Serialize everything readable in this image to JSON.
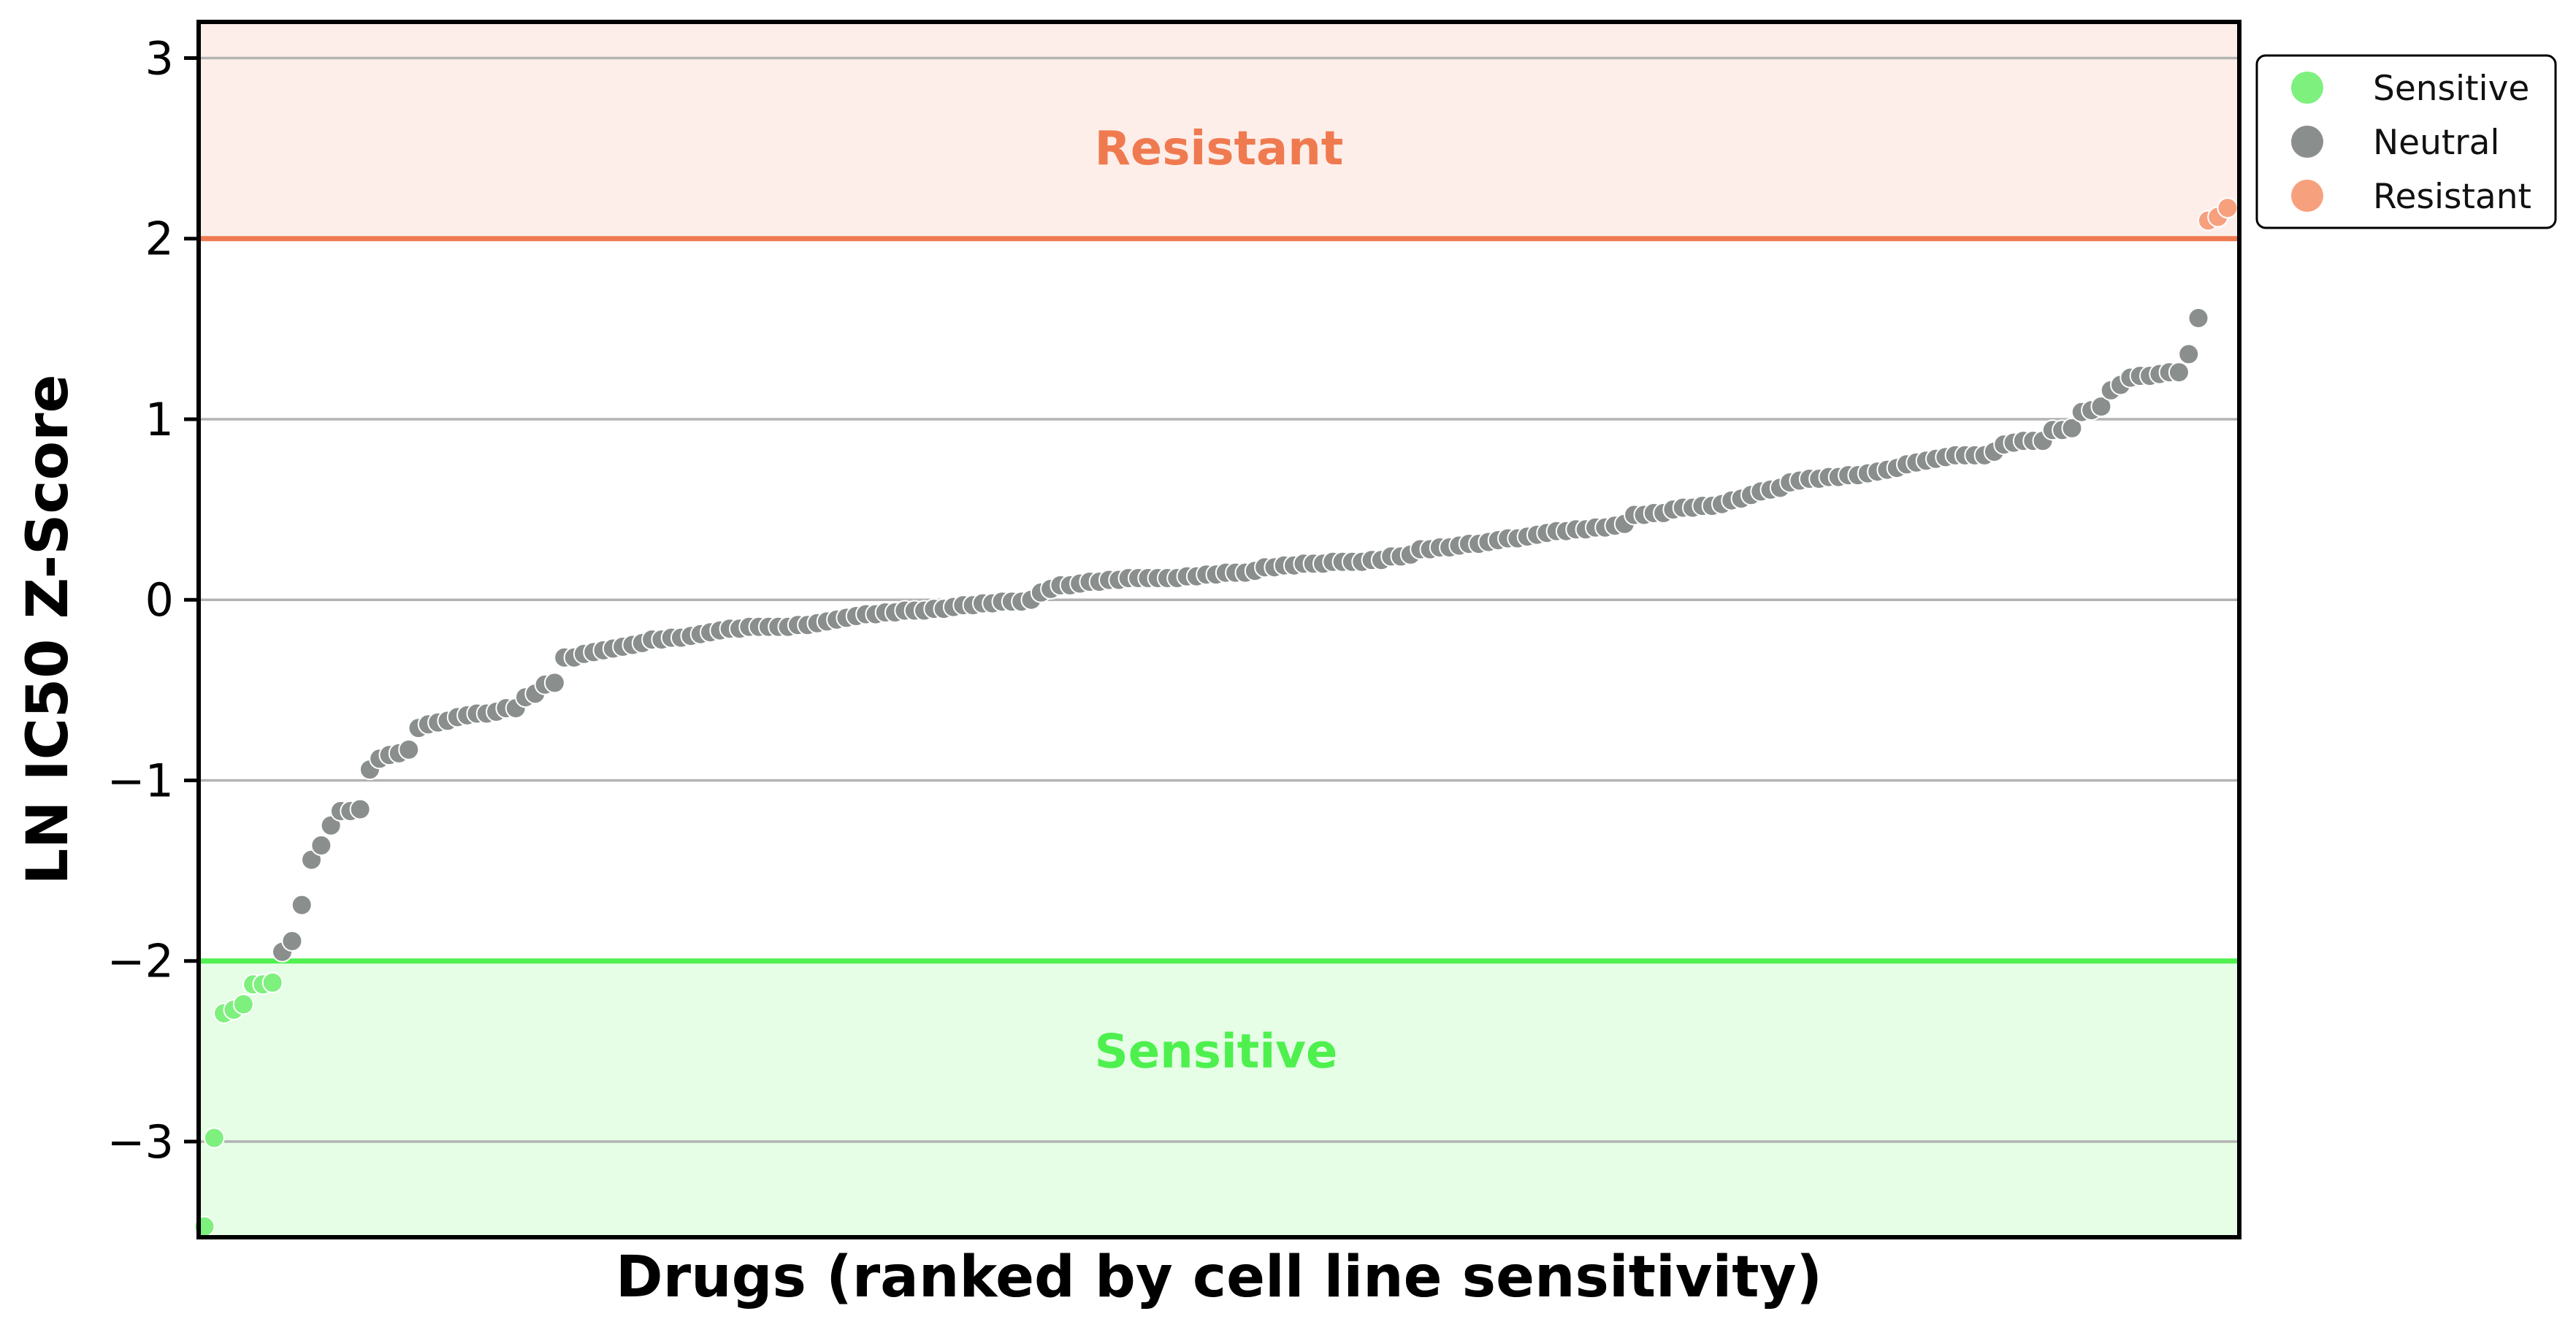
{
  "chart_data": {
    "type": "scatter",
    "title": "",
    "xlabel": "Drugs (ranked by cell line sensitivity)",
    "ylabel": "LN IC50 Z-Score",
    "ylim": [
      -3.53,
      3.2
    ],
    "y_ticks": [
      -3,
      -2,
      -1,
      0,
      1,
      2,
      3
    ],
    "y_tick_labels": [
      "−3",
      "−2",
      "−1",
      "0",
      "1",
      "2",
      "3"
    ],
    "x_ticks_shown": false,
    "grid": "horizontal",
    "thresholds": {
      "sensitive": -2,
      "resistant": 2
    },
    "zone_labels": {
      "resistant": "Resistant",
      "sensitive": "Sensitive"
    },
    "legend": {
      "placement": "outside-top-right",
      "entries": [
        {
          "name": "Sensitive",
          "color": "#7ef07e"
        },
        {
          "name": "Neutral",
          "color": "#8a8f8d"
        },
        {
          "name": "Resistant",
          "color": "#f7a07e"
        }
      ]
    },
    "colors": {
      "sensitive_point": "#7ef07e",
      "neutral_point": "#8a8f8d",
      "resistant_point": "#f7a07e",
      "resistant_line": "#f07a50",
      "sensitive_line": "#4ff04f",
      "resistant_fill": "#fdeeea",
      "sensitive_fill": "#e6fde6",
      "resistant_text": "#f07a50",
      "sensitive_text": "#4ef04e"
    },
    "series": [
      {
        "name": "Sensitive",
        "values": [
          -3.47,
          -2.98,
          -2.29,
          -2.27,
          -2.24,
          -2.13,
          -2.13,
          -2.12
        ]
      },
      {
        "name": "Neutral",
        "values": [
          -1.95,
          -1.89,
          -1.69,
          -1.44,
          -1.36,
          -1.25,
          -1.17,
          -1.17,
          -1.16,
          -0.94,
          -0.88,
          -0.86,
          -0.85,
          -0.83,
          -0.71,
          -0.69,
          -0.68,
          -0.67,
          -0.65,
          -0.64,
          -0.63,
          -0.63,
          -0.62,
          -0.6,
          -0.6,
          -0.54,
          -0.52,
          -0.47,
          -0.46,
          -0.32,
          -0.32,
          -0.3,
          -0.29,
          -0.28,
          -0.27,
          -0.26,
          -0.25,
          -0.24,
          -0.22,
          -0.22,
          -0.21,
          -0.21,
          -0.2,
          -0.19,
          -0.18,
          -0.17,
          -0.16,
          -0.16,
          -0.15,
          -0.15,
          -0.15,
          -0.15,
          -0.15,
          -0.14,
          -0.14,
          -0.13,
          -0.12,
          -0.11,
          -0.1,
          -0.09,
          -0.08,
          -0.08,
          -0.07,
          -0.07,
          -0.06,
          -0.06,
          -0.06,
          -0.05,
          -0.05,
          -0.04,
          -0.03,
          -0.03,
          -0.02,
          -0.02,
          -0.01,
          -0.01,
          -0.01,
          0.0,
          0.04,
          0.06,
          0.08,
          0.08,
          0.09,
          0.1,
          0.1,
          0.11,
          0.11,
          0.12,
          0.12,
          0.12,
          0.12,
          0.12,
          0.12,
          0.13,
          0.13,
          0.14,
          0.14,
          0.15,
          0.15,
          0.15,
          0.16,
          0.18,
          0.18,
          0.19,
          0.19,
          0.2,
          0.2,
          0.2,
          0.21,
          0.21,
          0.21,
          0.21,
          0.22,
          0.22,
          0.24,
          0.24,
          0.25,
          0.28,
          0.28,
          0.29,
          0.29,
          0.3,
          0.31,
          0.31,
          0.32,
          0.33,
          0.34,
          0.34,
          0.35,
          0.36,
          0.37,
          0.38,
          0.38,
          0.39,
          0.39,
          0.4,
          0.4,
          0.41,
          0.42,
          0.47,
          0.47,
          0.48,
          0.48,
          0.5,
          0.51,
          0.51,
          0.52,
          0.52,
          0.53,
          0.55,
          0.56,
          0.58,
          0.6,
          0.61,
          0.62,
          0.65,
          0.66,
          0.67,
          0.67,
          0.68,
          0.68,
          0.69,
          0.69,
          0.7,
          0.71,
          0.72,
          0.73,
          0.75,
          0.76,
          0.77,
          0.78,
          0.79,
          0.8,
          0.8,
          0.8,
          0.8,
          0.82,
          0.86,
          0.87,
          0.88,
          0.88,
          0.88,
          0.94,
          0.94,
          0.95,
          1.04,
          1.05,
          1.07,
          1.16,
          1.19,
          1.23,
          1.24,
          1.24,
          1.25,
          1.26,
          1.26,
          1.36,
          1.56
        ]
      },
      {
        "name": "Resistant",
        "values": [
          2.1,
          2.12,
          2.17
        ]
      }
    ]
  }
}
